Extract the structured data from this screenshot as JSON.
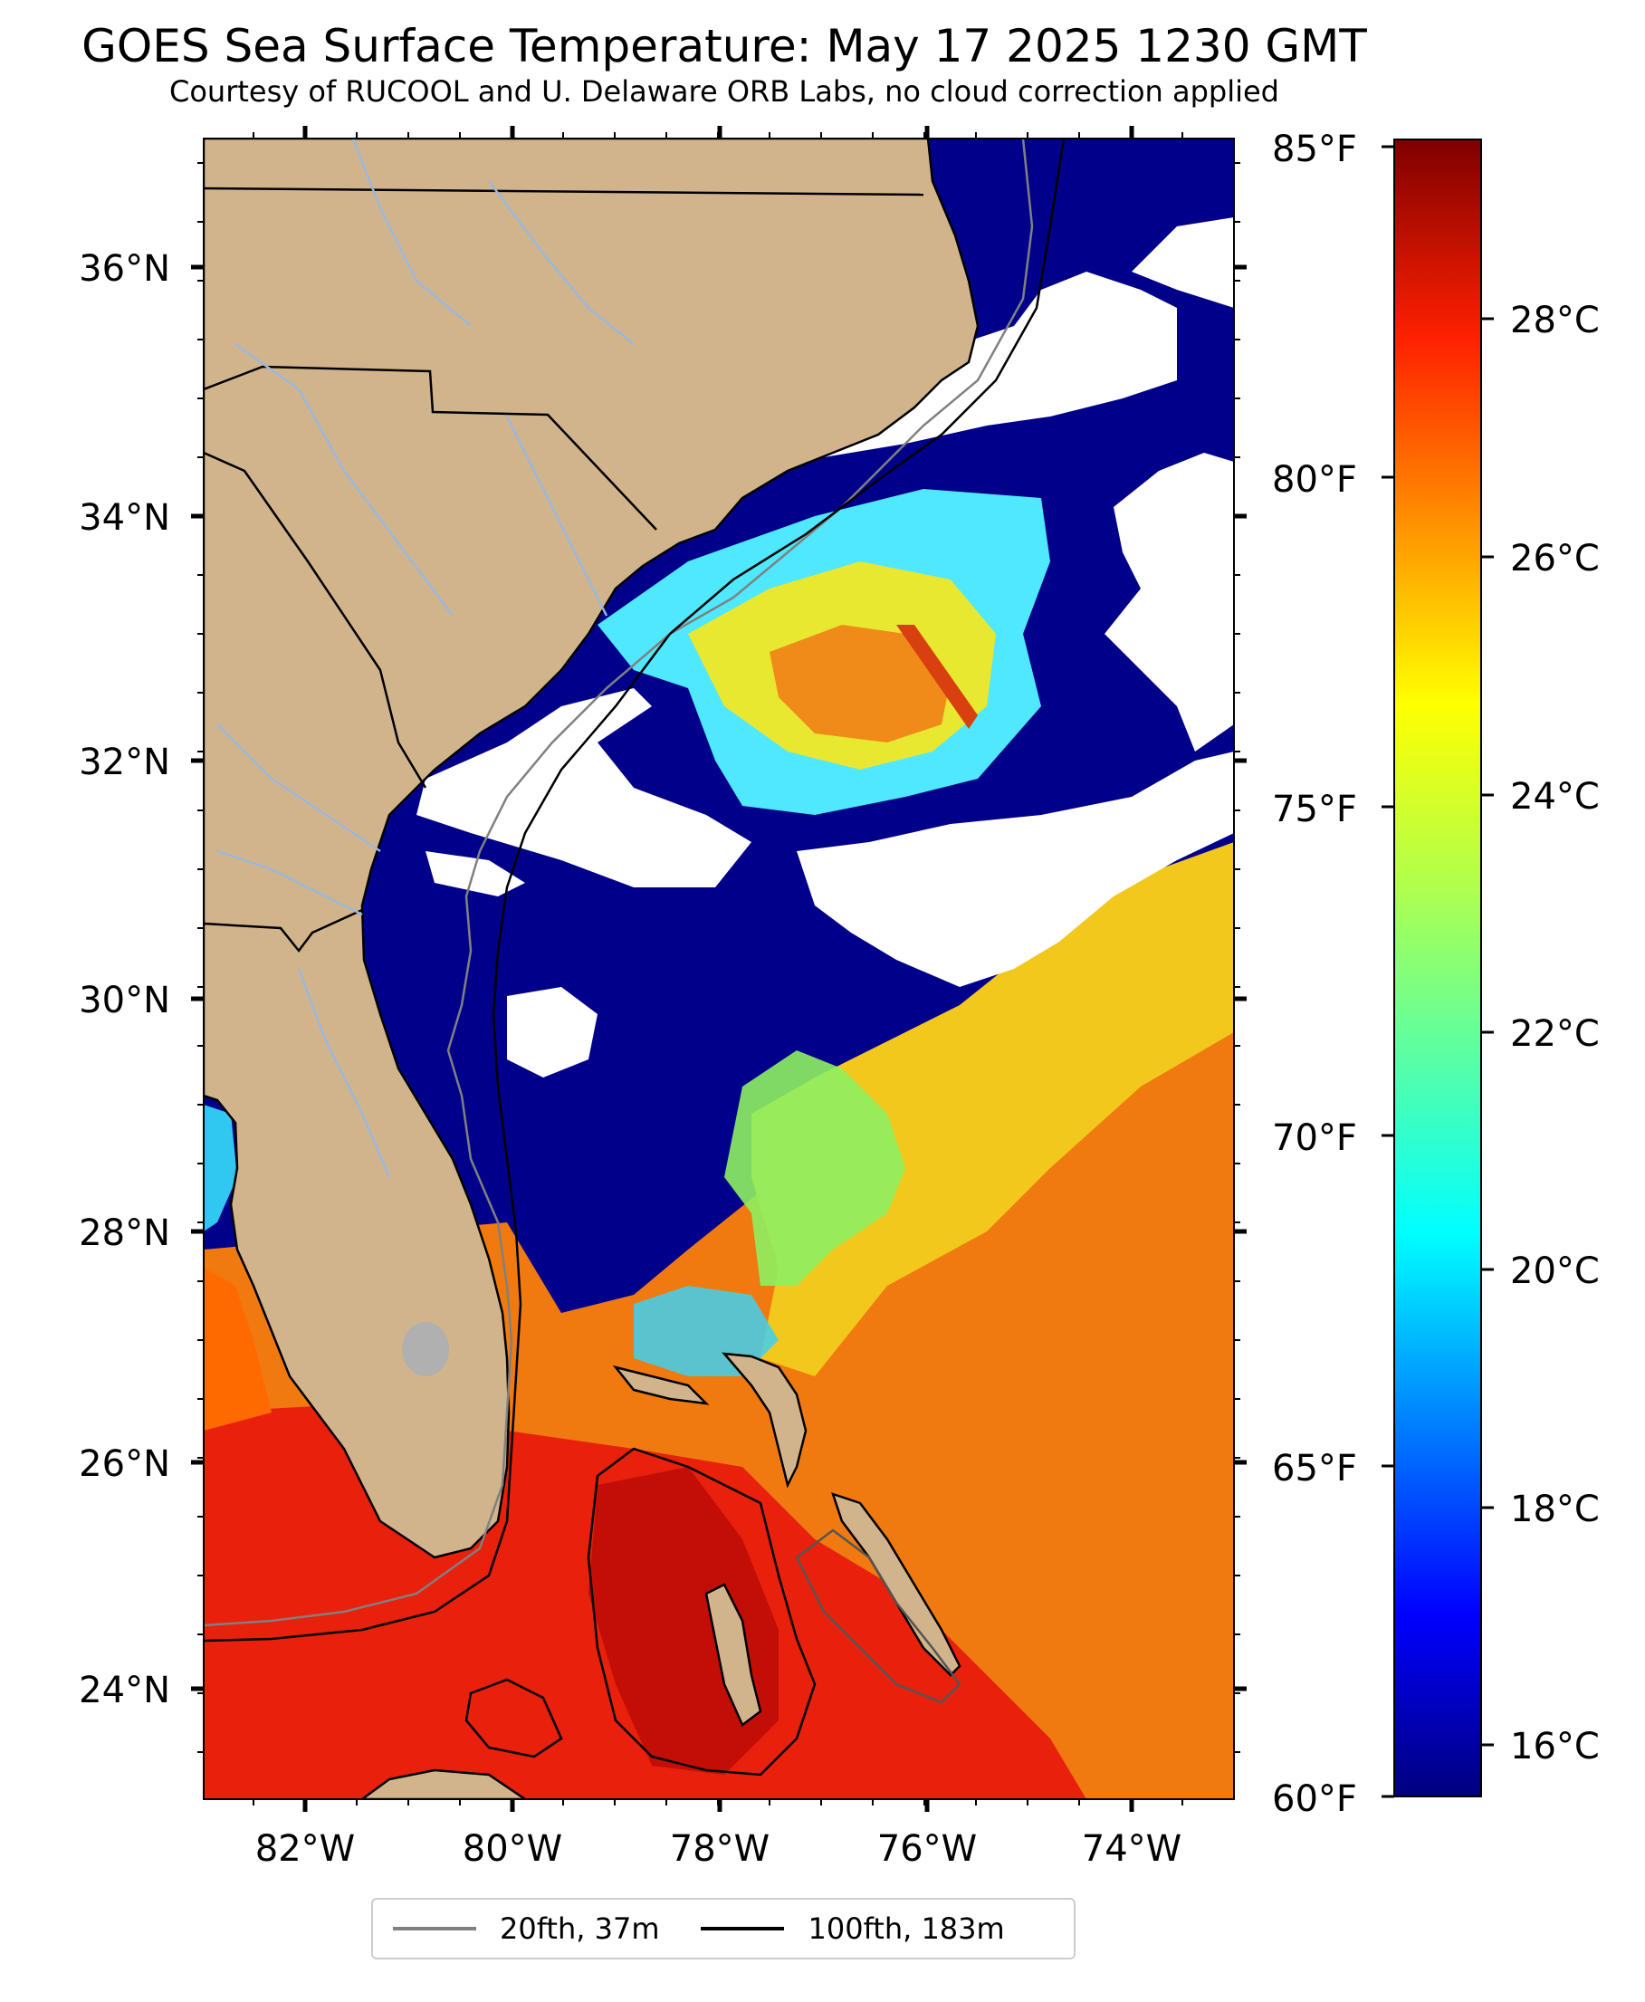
{
  "title": "GOES Sea Surface Temperature: May 17 2025 1230 GMT",
  "subtitle": "Courtesy of RUCOOL and U. Delaware ORB Labs, no cloud correction applied",
  "map": {
    "lon_ticks": [
      "82°W",
      "80°W",
      "78°W",
      "76°W",
      "74°W"
    ],
    "lat_ticks": [
      "36°N",
      "34°N",
      "32°N",
      "30°N",
      "28°N",
      "26°N",
      "24°N"
    ],
    "colors": {
      "land": "#d2b48c",
      "cold_water": "#00008b",
      "cloud": "#ffffff",
      "lake": "#b0b0b0",
      "river": "#9ab8dc"
    }
  },
  "colorbar": {
    "fahrenheit_labels": [
      "85°F",
      "80°F",
      "75°F",
      "70°F",
      "65°F",
      "60°F"
    ],
    "celsius_labels": [
      "28°C",
      "26°C",
      "24°C",
      "22°C",
      "20°C",
      "18°C",
      "16°C"
    ],
    "colormap": "jet"
  },
  "legend": [
    {
      "label": "20fth, 37m",
      "color": "#808080"
    },
    {
      "label": "100fth, 183m",
      "color": "#000000"
    }
  ]
}
